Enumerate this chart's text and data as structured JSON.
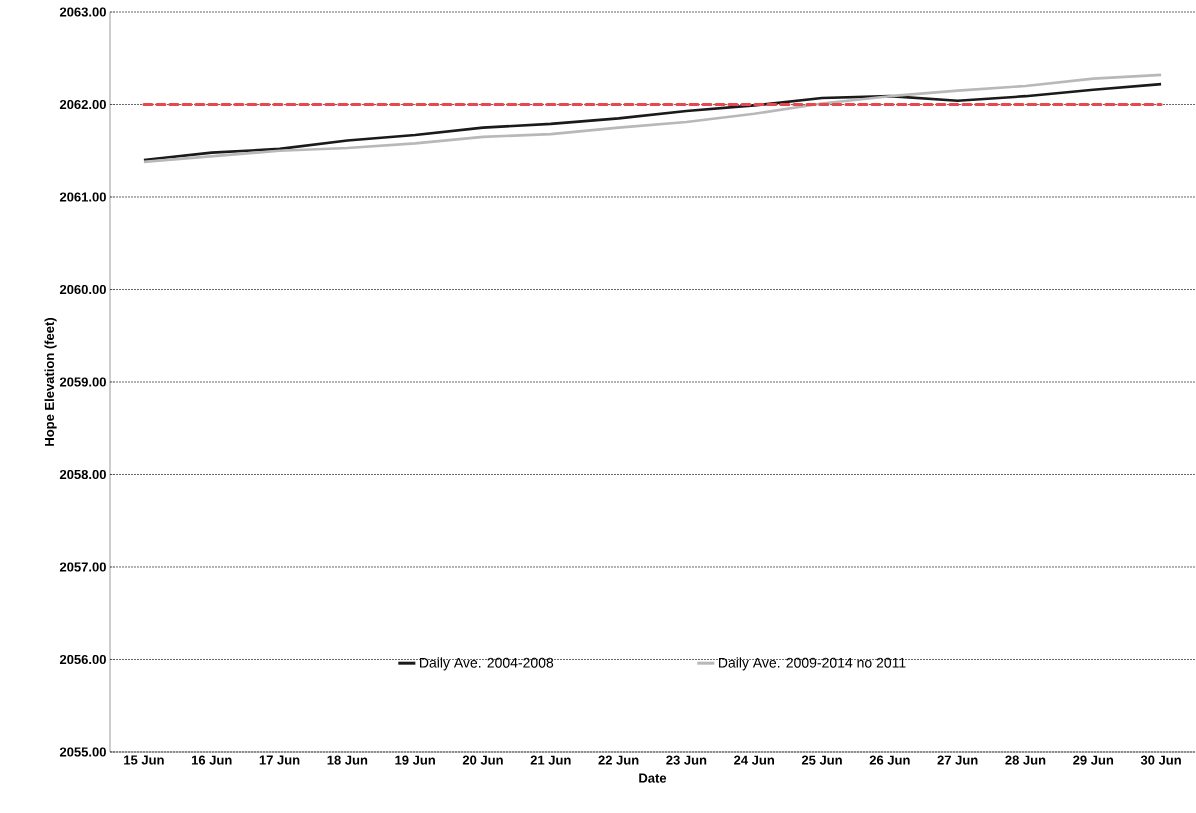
{
  "chart_data": {
    "type": "line",
    "xlabel": "Date",
    "ylabel": "Hope Elevation  (feet)",
    "categories": [
      "15 Jun",
      "16 Jun",
      "17 Jun",
      "18 Jun",
      "19 Jun",
      "20 Jun",
      "21 Jun",
      "22 Jun",
      "23 Jun",
      "24 Jun",
      "25 Jun",
      "26 Jun",
      "27 Jun",
      "28 Jun",
      "29 Jun",
      "30 Jun"
    ],
    "series": [
      {
        "name": "Daily Ave. 2004-2008",
        "color": "#1a1a1a",
        "values": [
          2061.4,
          2061.48,
          2061.52,
          2061.61,
          2061.67,
          2061.75,
          2061.79,
          2061.85,
          2061.93,
          2061.99,
          2062.07,
          2062.09,
          2062.04,
          2062.09,
          2062.16,
          2062.22
        ]
      },
      {
        "name": "Daily Ave. 2009-2014 no 2011",
        "color": "#b8b8b8",
        "values": [
          2061.38,
          2061.44,
          2061.5,
          2061.53,
          2061.58,
          2061.65,
          2061.68,
          2061.75,
          2061.81,
          2061.9,
          2062.01,
          2062.09,
          2062.15,
          2062.2,
          2062.28,
          2062.32
        ]
      }
    ],
    "ylim": [
      2055,
      2063
    ],
    "yticks": [
      {
        "value": 2055,
        "label": "2055.00"
      },
      {
        "value": 2056,
        "label": "2056.00"
      },
      {
        "value": 2057,
        "label": "2057.00"
      },
      {
        "value": 2058,
        "label": "2058.00"
      },
      {
        "value": 2059,
        "label": "2059.00"
      },
      {
        "value": 2060,
        "label": "2060.00"
      },
      {
        "value": 2061,
        "label": "2061.00"
      },
      {
        "value": 2062,
        "label": "2062.00"
      },
      {
        "value": 2063,
        "label": "2063.00"
      }
    ],
    "ref_lines": [
      {
        "axis": "y",
        "value": 2062,
        "color": "#e8474f",
        "line_style": "dashed"
      }
    ],
    "grid": "y",
    "legend": "bottom"
  }
}
